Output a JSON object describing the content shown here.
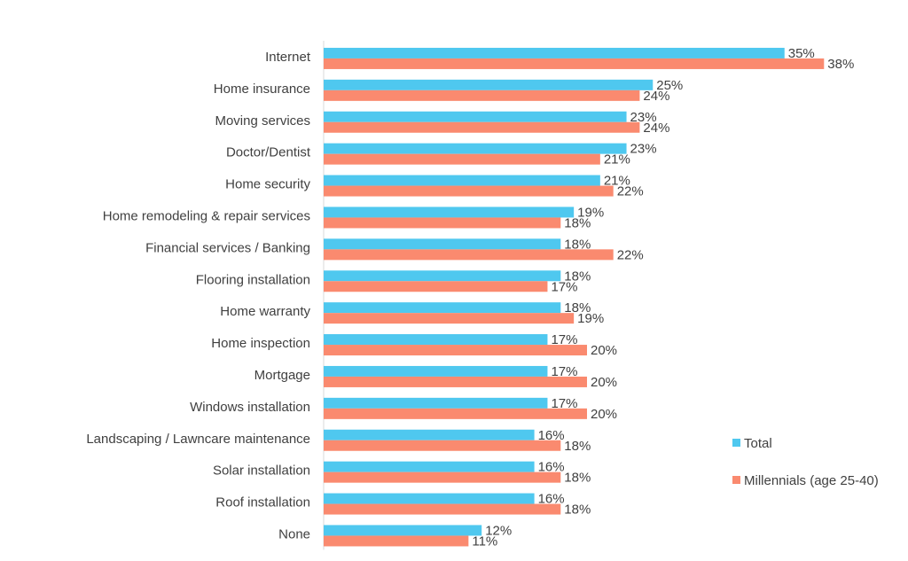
{
  "chart_data": {
    "type": "bar",
    "orientation": "horizontal",
    "categories": [
      "Internet",
      "Home insurance",
      "Moving services",
      "Doctor/Dentist",
      "Home security",
      "Home remodeling & repair services",
      "Financial services / Banking",
      "Flooring installation",
      "Home warranty",
      "Home inspection",
      "Mortgage",
      "Windows installation",
      "Landscaping / Lawncare maintenance",
      "Solar installation",
      "Roof installation",
      "None"
    ],
    "series": [
      {
        "name": "Total",
        "color": "#4fc8ef",
        "values": [
          35,
          25,
          23,
          23,
          21,
          19,
          18,
          18,
          18,
          17,
          17,
          17,
          16,
          16,
          16,
          12
        ],
        "labels": [
          "35%",
          "25%",
          "23%",
          "23%",
          "21%",
          "19%",
          "18%",
          "18%",
          "18%",
          "17%",
          "17%",
          "17%",
          "16%",
          "16%",
          "16%",
          "12%"
        ]
      },
      {
        "name": "Millennials (age 25-40)",
        "color": "#fa8a6f",
        "values": [
          38,
          24,
          24,
          21,
          22,
          18,
          22,
          17,
          19,
          20,
          20,
          20,
          18,
          18,
          18,
          11
        ],
        "labels": [
          "38%",
          "24%",
          "24%",
          "21%",
          "22%",
          "18%",
          "22%",
          "17%",
          "19%",
          "20%",
          "20%",
          "20%",
          "18%",
          "18%",
          "18%",
          "11%"
        ]
      }
    ],
    "xlim": [
      0,
      40
    ],
    "grid": false,
    "legend_position": "right"
  }
}
